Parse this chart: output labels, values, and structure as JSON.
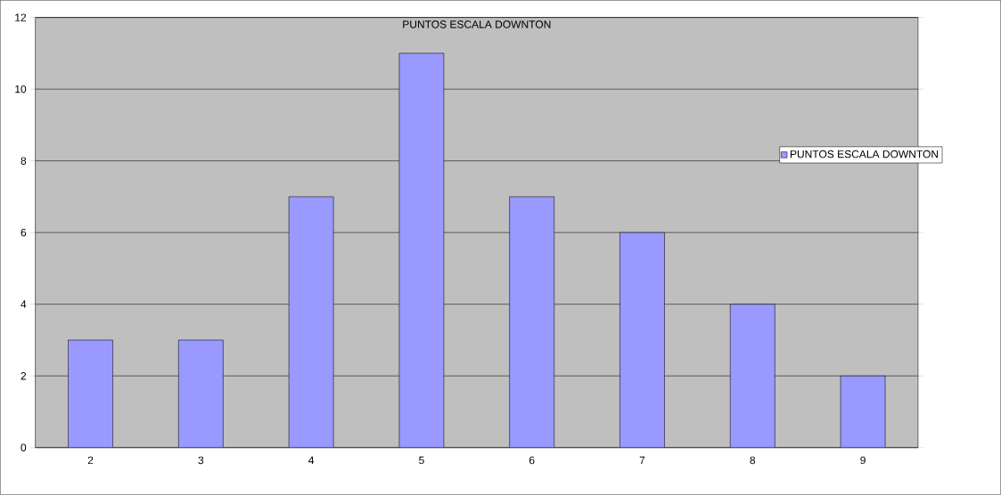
{
  "chart_data": {
    "type": "bar",
    "title": "PUNTOS ESCALA DOWNTON",
    "categories": [
      "2",
      "3",
      "4",
      "5",
      "6",
      "7",
      "8",
      "9"
    ],
    "series": [
      {
        "name": "PUNTOS ESCALA DOWNTON",
        "color": "#9999ff",
        "values": [
          3,
          3,
          7,
          11,
          7,
          6,
          4,
          2
        ]
      }
    ],
    "ylim": [
      0,
      12
    ],
    "yticks": [
      0,
      2,
      4,
      6,
      8,
      10,
      12
    ],
    "grid": "y",
    "legend": "right"
  }
}
